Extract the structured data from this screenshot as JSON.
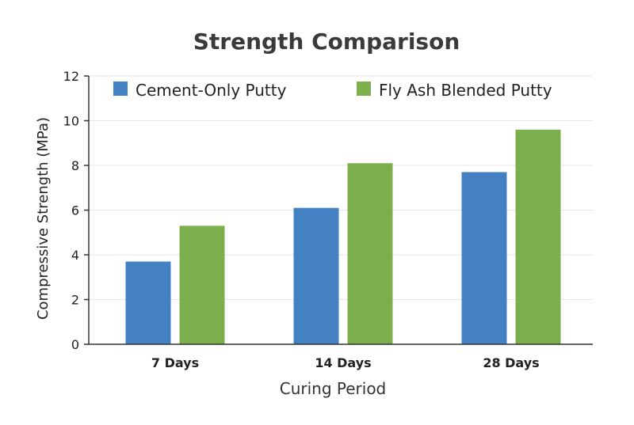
{
  "chart_data": {
    "type": "bar",
    "title": "Strength Comparison",
    "xlabel": "Curing Period",
    "ylabel": "Compressive Strength (MPa)",
    "categories": [
      "7 Days",
      "14 Days",
      "28 Days"
    ],
    "series": [
      {
        "name": "Cement-Only Putty",
        "values": [
          3.7,
          6.1,
          7.7
        ],
        "color": "#4481c3"
      },
      {
        "name": "Fly Ash Blended Putty",
        "values": [
          5.3,
          8.1,
          9.6
        ],
        "color": "#7cb04f"
      }
    ],
    "ylim": [
      0,
      12
    ],
    "yticks": [
      0,
      2,
      4,
      6,
      8,
      10,
      12
    ],
    "grid": true,
    "legend": "top"
  }
}
